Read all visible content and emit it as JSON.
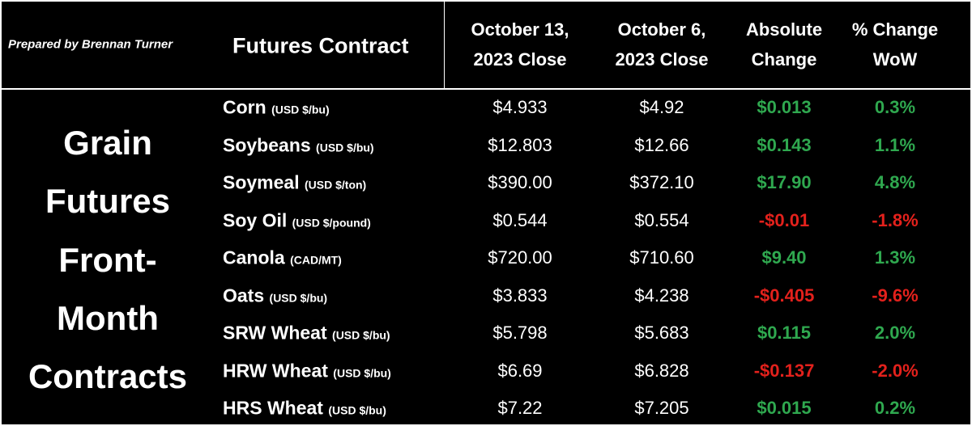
{
  "credit": "Prepared by Brennan Turner",
  "headers": [
    "Futures Contract",
    [
      "October 13,",
      "2023 Close"
    ],
    [
      "October 6,",
      "2023 Close"
    ],
    [
      "Absolute",
      "Change"
    ],
    [
      "% Change",
      "WoW"
    ]
  ],
  "side_label": [
    "Grain",
    "Futures",
    "Front-",
    "Month",
    "Contracts"
  ],
  "rows": [
    {
      "name": "Corn",
      "unit": "(USD $/bu)",
      "cells": [
        "$4.933",
        "$4.92",
        "$0.013",
        "0.3%"
      ],
      "color": "#2fa84f"
    },
    {
      "name": "Soybeans",
      "unit": "(USD $/bu)",
      "cells": [
        "$12.803",
        "$12.66",
        "$0.143",
        "1.1%"
      ],
      "color": "#2fa84f"
    },
    {
      "name": "Soymeal",
      "unit": "(USD $/ton)",
      "cells": [
        "$390.00",
        "$372.10",
        "$17.90",
        "4.8%"
      ],
      "color": "#2fa84f"
    },
    {
      "name": "Soy Oil",
      "unit": "(USD $/pound)",
      "cells": [
        "$0.544",
        "$0.554",
        "-$0.01",
        "-1.8%"
      ],
      "color": "#e3211c"
    },
    {
      "name": "Canola",
      "unit": "(CAD/MT)",
      "cells": [
        "$720.00",
        "$710.60",
        "$9.40",
        "1.3%"
      ],
      "color": "#2fa84f"
    },
    {
      "name": "Oats",
      "unit": "(USD $/bu)",
      "cells": [
        "$3.833",
        "$4.238",
        "-$0.405",
        "-9.6%"
      ],
      "color": "#e3211c"
    },
    {
      "name": "SRW Wheat",
      "unit": "(USD $/bu)",
      "cells": [
        "$5.798",
        "$5.683",
        "$0.115",
        "2.0%"
      ],
      "color": "#2fa84f"
    },
    {
      "name": "HRW Wheat",
      "unit": "(USD $/bu)",
      "cells": [
        "$6.69",
        "$6.828",
        "-$0.137",
        "-2.0%"
      ],
      "color": "#e3211c"
    },
    {
      "name": "HRS Wheat",
      "unit": "(USD $/bu)",
      "cells": [
        "$7.22",
        "$7.205",
        "$0.015",
        "0.2%"
      ],
      "color": "#2fa84f"
    }
  ]
}
